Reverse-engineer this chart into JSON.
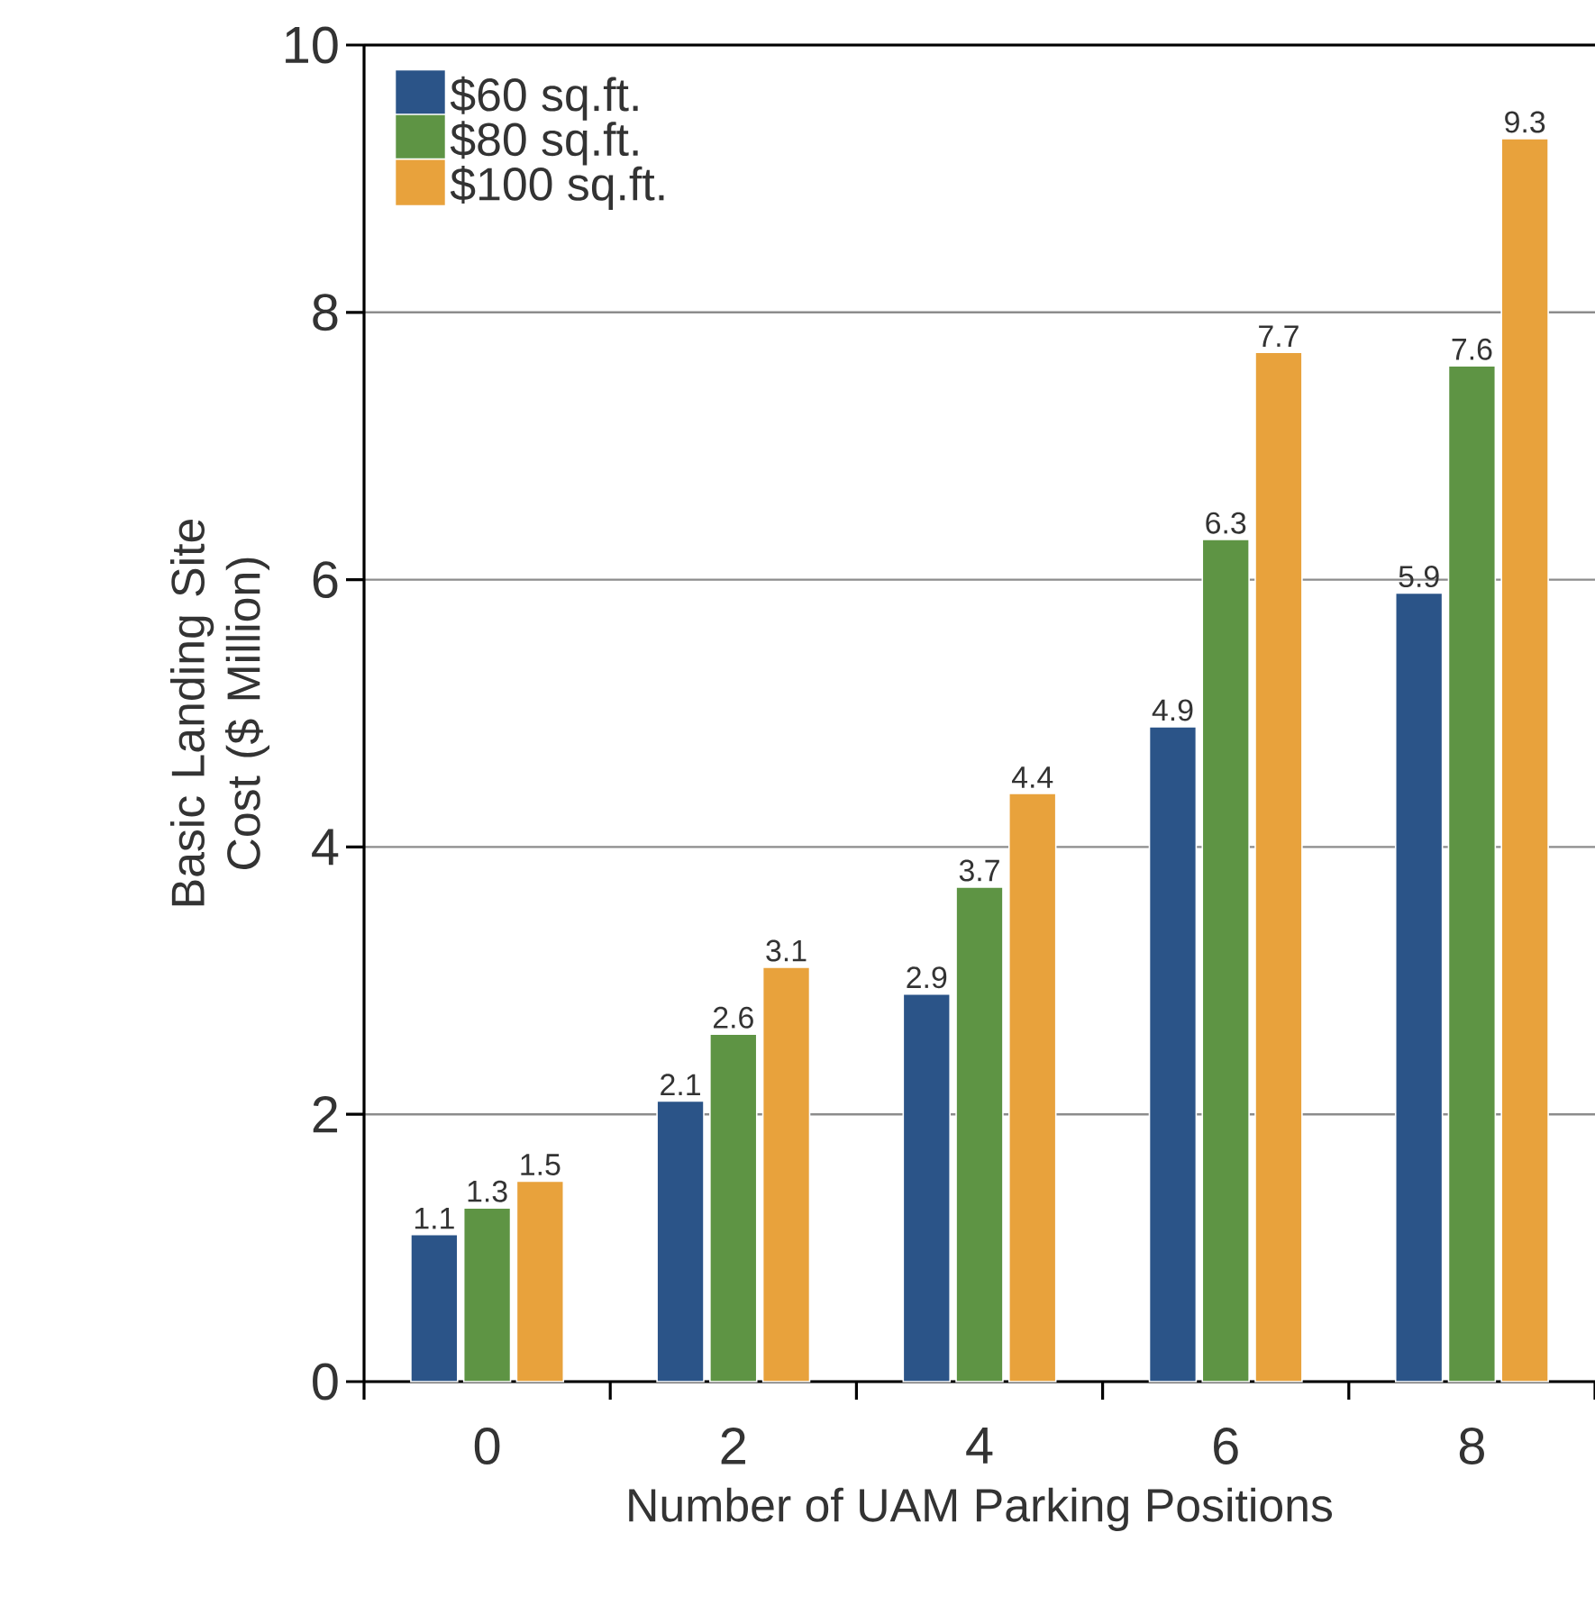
{
  "chart_data": {
    "type": "bar",
    "xlabel": "Number of UAM Parking Positions",
    "ylabel": "Basic Landing Site Cost ($ Million)",
    "categories": [
      "0",
      "2",
      "4",
      "6",
      "8"
    ],
    "series": [
      {
        "name": "$60 sq.ft.",
        "color": "#2b5488",
        "values": [
          1.1,
          2.1,
          2.9,
          4.9,
          5.9
        ]
      },
      {
        "name": "$80 sq.ft.",
        "color": "#5e9444",
        "values": [
          1.3,
          2.6,
          3.7,
          6.3,
          7.6
        ]
      },
      {
        "name": "$100 sq.ft.",
        "color": "#e8a23c",
        "values": [
          1.5,
          3.1,
          4.4,
          7.7,
          9.3
        ]
      }
    ],
    "ylim": [
      0,
      10
    ],
    "yticks": [
      0,
      2,
      4,
      6,
      8,
      10
    ],
    "grid": "y",
    "legend": "top left",
    "data_labels": true
  }
}
